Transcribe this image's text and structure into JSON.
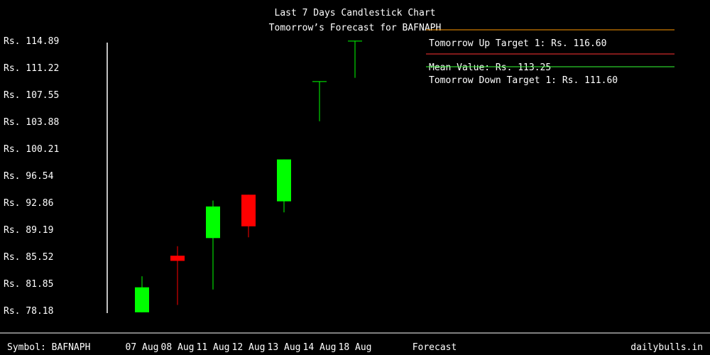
{
  "chart_data": {
    "type": "candlestick",
    "title": "Last 7 Days Candlestick Chart",
    "subtitle": "Tomorrow’s Forecast for BAFNAPH",
    "y_ticks": [
      "Rs. 114.89",
      "Rs. 111.22",
      "Rs. 107.55",
      "Rs. 103.88",
      "Rs. 100.21",
      "Rs. 96.54",
      "Rs. 92.86",
      "Rs. 89.19",
      "Rs. 85.52",
      "Rs. 81.85",
      "Rs. 78.18"
    ],
    "y_tick_values": [
      114.89,
      111.22,
      107.55,
      103.88,
      100.21,
      96.54,
      92.86,
      89.19,
      85.52,
      81.85,
      78.18
    ],
    "ylim": [
      78.18,
      114.89
    ],
    "categories": [
      "07 Aug",
      "08 Aug",
      "11 Aug",
      "12 Aug",
      "13 Aug",
      "14 Aug",
      "18 Aug"
    ],
    "candles": [
      {
        "date": "07 Aug",
        "open": 78.0,
        "close": 81.4,
        "high": 82.9,
        "low": 78.0,
        "color": "#00ff00"
      },
      {
        "date": "08 Aug",
        "open": 85.7,
        "close": 85.0,
        "high": 87.0,
        "low": 79.0,
        "color": "#ff0000"
      },
      {
        "date": "11 Aug",
        "open": 88.1,
        "close": 92.4,
        "high": 93.2,
        "low": 81.1,
        "color": "#00ff00"
      },
      {
        "date": "12 Aug",
        "open": 94.0,
        "close": 89.7,
        "high": 94.0,
        "low": 88.2,
        "color": "#ff0000"
      },
      {
        "date": "13 Aug",
        "open": 93.1,
        "close": 98.8,
        "high": 98.8,
        "low": 91.6,
        "color": "#00ff00"
      },
      {
        "date": "14 Aug",
        "open": 109.4,
        "close": 109.4,
        "high": 109.4,
        "low": 104.0,
        "color": "#00ff00"
      },
      {
        "date": "18 Aug",
        "open": 114.9,
        "close": 114.9,
        "high": 114.9,
        "low": 109.9,
        "color": "#00ff00"
      }
    ],
    "forecast_lines": [
      {
        "label": "Tomorrow Up Target 1: Rs. 116.60",
        "value": 116.6,
        "color": "#ff9900"
      },
      {
        "label": "Mean Value: Rs. 113.25",
        "value": 113.25,
        "color": "#ff3333"
      },
      {
        "label": "Tomorrow Down Target 1: Rs. 111.60",
        "value": 111.6,
        "color": "#33ff33"
      }
    ],
    "forecast_label": "Forecast",
    "grid": false
  },
  "footer": {
    "symbol": "Symbol: BAFNAPH",
    "brand": "dailybulls.in"
  },
  "colors": {
    "background": "#000000",
    "up": "#00ff00",
    "down": "#ff0000",
    "text": "#ffffff"
  }
}
